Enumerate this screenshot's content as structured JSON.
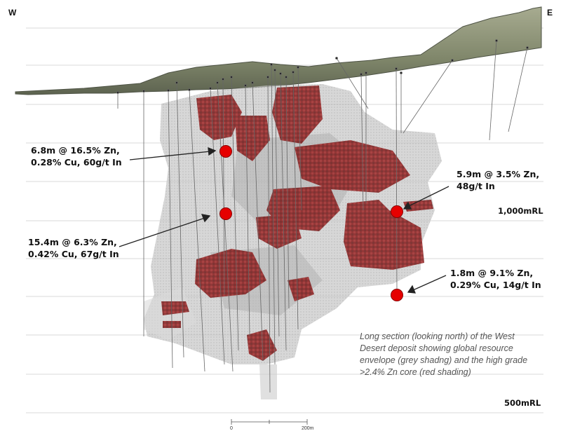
{
  "directions": {
    "west": "W",
    "east": "E"
  },
  "elevations": {
    "upper": "1,000mRL",
    "lower": "500mRL"
  },
  "annotations": [
    {
      "line1": "6.8m @ 16.5% Zn,",
      "line2": "0.28% Cu, 60g/t In"
    },
    {
      "line1": "15.4m @ 6.3% Zn,",
      "line2": "0.42% Cu, 67g/t In"
    },
    {
      "line1": "5.9m @ 3.5% Zn,",
      "line2": "48g/t In"
    },
    {
      "line1": "1.8m @ 9.1% Zn,",
      "line2": "0.29% Cu, 14g/t In"
    }
  ],
  "caption": "Long section (looking north) of the West Desert deposit showing global resource envelope (grey shadng) and the high grade >2.4% Zn core (red shading)",
  "scale_bar": {
    "start": "0",
    "end": "200m"
  },
  "colors": {
    "grade_core": "#8b1a1a",
    "envelope": "#b8b8b8",
    "intercept": "#e60000",
    "terrain": "#8a9070"
  }
}
